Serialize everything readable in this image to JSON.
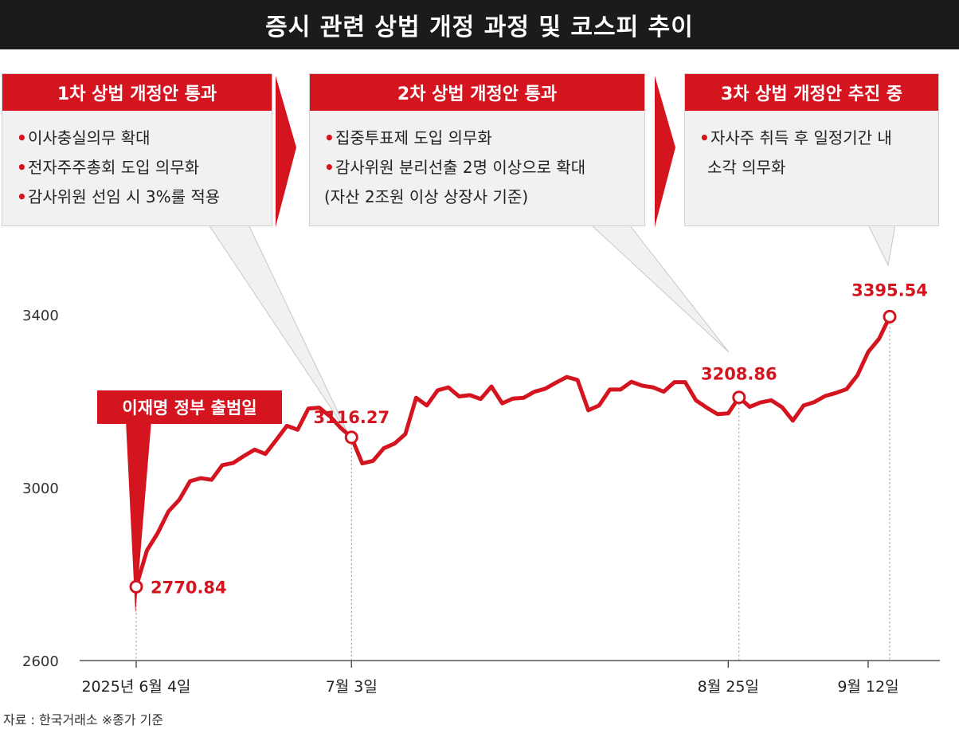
{
  "title": "증시 관련 상법 개정 과정 및 코스피 추이",
  "stages": [
    {
      "heading": "1차 상법 개정안 통과",
      "items": [
        "이사충실의무 확대",
        "전자주주총회 도입 의무화",
        "감사위원 선임 시 3%룰 적용"
      ]
    },
    {
      "heading": "2차 상법 개정안 통과",
      "items": [
        "집중투표제 도입 의무화",
        "감사위원 분리선출 2명 이상으로 확대"
      ],
      "continuation": "(자산 2조원 이상 상장사 기준)"
    },
    {
      "heading": "3차 상법 개정안 추진 중",
      "items": [
        "자사주 취득 후 일정기간 내"
      ],
      "continuation": "소각 의무화"
    }
  ],
  "source": "자료 : 한국거래소 ※종가 기준",
  "colors": {
    "accent": "#d4141f",
    "title_bg": "#1d1a1b",
    "box_bg": "#f1f1f1",
    "axis": "#555555"
  },
  "chart_data": {
    "type": "line",
    "y_ticks": [
      "3400",
      "3000",
      "2600"
    ],
    "ylim": [
      2600,
      3600
    ],
    "x_tick_labels": [
      "2025년 6월 4일",
      "7월 3일",
      "8월 25일",
      "9월 12일"
    ],
    "x_tick_index": [
      0,
      20,
      55,
      68
    ],
    "series": [
      {
        "values": [
          2770.84,
          2855,
          2895,
          2945,
          2972,
          3015,
          3022,
          3018,
          3052,
          3057,
          3073,
          3088,
          3078,
          3110,
          3143,
          3134,
          3183,
          3185,
          3165,
          3138,
          3116.27,
          3056,
          3062,
          3091,
          3102,
          3124,
          3208,
          3190,
          3225,
          3232,
          3211,
          3214,
          3205,
          3234,
          3195,
          3206,
          3208,
          3222,
          3229,
          3243,
          3256,
          3249,
          3179,
          3190,
          3227,
          3227,
          3245,
          3236,
          3232,
          3222,
          3244,
          3244,
          3202,
          3185,
          3170,
          3172,
          3208.86,
          3187,
          3197,
          3202,
          3186,
          3155,
          3190,
          3198,
          3212,
          3219,
          3228,
          3260,
          3314,
          3344,
          3395.54
        ],
        "annotations": [
          {
            "index": 0,
            "label": "2770.84"
          },
          {
            "index": 20,
            "label": "3116.27"
          },
          {
            "index": 56,
            "label": "3208.86"
          },
          {
            "index": 70,
            "label": "3395.54"
          }
        ]
      }
    ],
    "callout": "이재명 정부 출범일"
  }
}
